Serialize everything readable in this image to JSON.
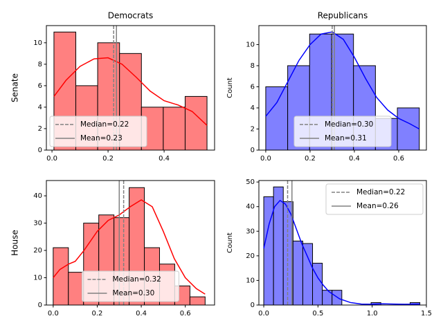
{
  "chart_data": [
    {
      "type": "histogram",
      "title": "Democrats",
      "ylabel": "Senate",
      "bins": [
        0.007,
        0.085,
        0.163,
        0.241,
        0.319,
        0.397,
        0.475,
        0.553
      ],
      "counts": [
        11,
        6,
        10,
        9,
        4,
        4,
        5
      ],
      "color": "#ff8080",
      "line_color": "#ff0000",
      "kde": {
        "x": [
          0.007,
          0.05,
          0.1,
          0.15,
          0.2,
          0.25,
          0.3,
          0.35,
          0.4,
          0.45,
          0.5,
          0.553
        ],
        "y": [
          5,
          6.5,
          7.8,
          8.5,
          8.6,
          8,
          6.8,
          5.5,
          4.6,
          4.2,
          3.6,
          2.3
        ]
      },
      "lines": [
        {
          "name": "Median=0.22",
          "value": 0.22,
          "style": "dashed"
        },
        {
          "name": "Mean=0.23",
          "value": 0.23,
          "style": "solid"
        }
      ],
      "xlim": [
        -0.02,
        0.58
      ],
      "ylim": [
        0,
        11.6
      ],
      "xticks": [
        {
          "value": 0,
          "label": "0.0"
        },
        0.2,
        0.4
      ],
      "yticks": [
        0,
        2,
        4,
        6,
        8,
        10
      ],
      "legend": "lower left"
    },
    {
      "type": "histogram",
      "title": "Republicans",
      "ylabel": "Count",
      "bins": [
        0,
        0.099,
        0.198,
        0.297,
        0.396,
        0.495,
        0.594,
        0.693
      ],
      "counts": [
        6,
        8,
        11,
        11,
        8,
        3,
        4
      ],
      "color": "#8080ff",
      "line_color": "#0000ff",
      "kde": {
        "x": [
          0,
          0.05,
          0.1,
          0.15,
          0.2,
          0.25,
          0.3,
          0.35,
          0.4,
          0.45,
          0.5,
          0.55,
          0.6,
          0.65,
          0.693
        ],
        "y": [
          3.2,
          4.5,
          6.5,
          8.5,
          10,
          11,
          11.2,
          10.5,
          8.8,
          6.8,
          5,
          3.8,
          3,
          2.5,
          2
        ]
      },
      "lines": [
        {
          "name": "Median=0.30",
          "value": 0.3,
          "style": "dashed"
        },
        {
          "name": "Mean=0.31",
          "value": 0.31,
          "style": "solid"
        }
      ],
      "xlim": [
        -0.031,
        0.725
      ],
      "ylim": [
        0,
        11.8
      ],
      "xticks": [
        {
          "value": 0,
          "label": "0.0"
        },
        0.2,
        0.4,
        0.6
      ],
      "yticks": [
        0,
        2,
        4,
        6,
        8,
        10
      ],
      "legend": "lower center"
    },
    {
      "type": "histogram",
      "ylabel": "House",
      "bins": [
        0,
        0.069,
        0.138,
        0.207,
        0.276,
        0.345,
        0.414,
        0.483,
        0.552,
        0.621,
        0.69
      ],
      "counts": [
        21,
        12,
        30,
        33,
        32,
        43,
        21,
        15,
        7,
        3
      ],
      "color": "#ff8080",
      "line_color": "#ff0000",
      "kde": {
        "x": [
          0,
          0.03,
          0.07,
          0.1,
          0.14,
          0.2,
          0.25,
          0.3,
          0.35,
          0.4,
          0.45,
          0.5,
          0.55,
          0.6,
          0.65,
          0.69
        ],
        "y": [
          10,
          13,
          15,
          16,
          20,
          27,
          31,
          33,
          36,
          38.5,
          36,
          27,
          17,
          10,
          6,
          4
        ]
      },
      "lines": [
        {
          "name": "Median=0.32",
          "value": 0.32,
          "style": "dashed"
        },
        {
          "name": "Mean=0.30",
          "value": 0.3,
          "style": "solid"
        }
      ],
      "xlim": [
        -0.031,
        0.733
      ],
      "ylim": [
        0,
        45.6
      ],
      "xticks": [
        {
          "value": 0,
          "label": "0.0"
        },
        0.2,
        0.4,
        0.6
      ],
      "yticks": [
        0,
        10,
        20,
        30,
        40
      ],
      "legend": "lower center"
    },
    {
      "type": "histogram",
      "ylabel": "Count",
      "bins": [
        0,
        0.09,
        0.18,
        0.27,
        0.36,
        0.45,
        0.54,
        0.63,
        0.72,
        0.81,
        0.9,
        0.99,
        1.08,
        1.17,
        1.26,
        1.35,
        1.44
      ],
      "counts": [
        44,
        48,
        42,
        26,
        25,
        17,
        6,
        6,
        0,
        0,
        0,
        1,
        0,
        0,
        0,
        1
      ],
      "color": "#8080ff",
      "line_color": "#0000ff",
      "kde": {
        "x": [
          0,
          0.05,
          0.1,
          0.15,
          0.2,
          0.25,
          0.3,
          0.35,
          0.4,
          0.45,
          0.5,
          0.55,
          0.6,
          0.7,
          0.8,
          0.9,
          1.0,
          1.1,
          1.2,
          1.3,
          1.44
        ],
        "y": [
          23,
          33,
          40,
          42.5,
          41,
          37,
          31,
          25,
          20,
          15,
          11,
          8,
          5.5,
          2.5,
          1,
          0.4,
          0.3,
          0.5,
          0.4,
          0.3,
          0.4
        ]
      },
      "lines": [
        {
          "name": "Median=0.22",
          "value": 0.22,
          "style": "dashed"
        },
        {
          "name": "Mean=0.26",
          "value": 0.26,
          "style": "solid"
        }
      ],
      "xlim": [
        -0.045,
        1.5
      ],
      "ylim": [
        0,
        50.6
      ],
      "xticks": [
        {
          "value": 0,
          "label": "0.0"
        },
        0.5,
        {
          "value": 1,
          "label": "1.0"
        },
        1.5
      ],
      "yticks": [
        0,
        10,
        20,
        30,
        40,
        50
      ],
      "legend": "upper right"
    }
  ]
}
